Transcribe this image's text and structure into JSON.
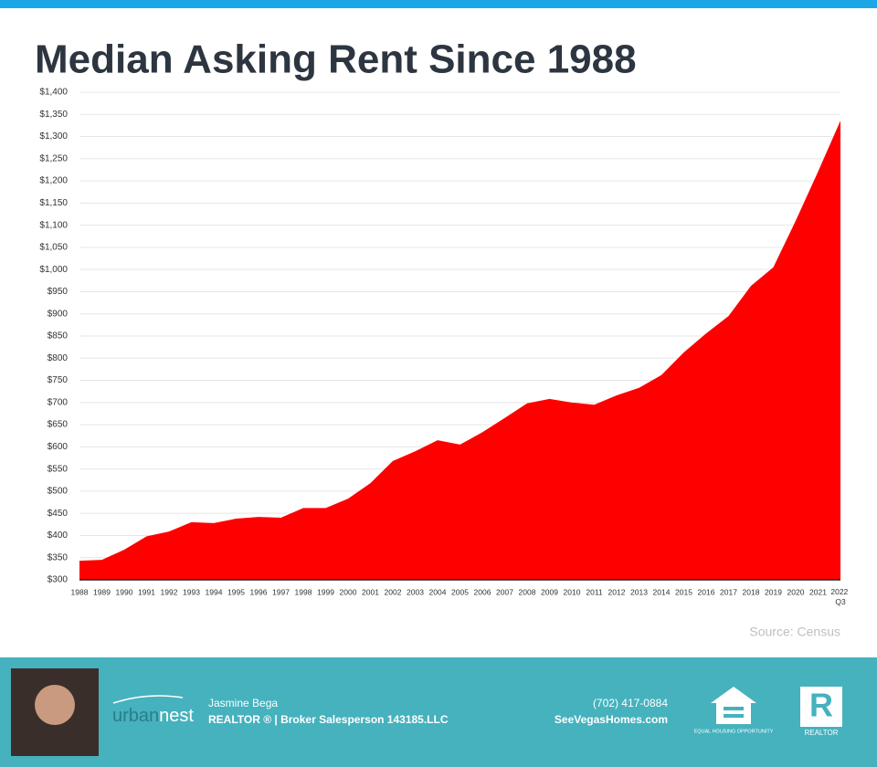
{
  "chart_data": {
    "type": "area",
    "title": "Median Asking Rent Since 1988",
    "categories": [
      "1988",
      "1989",
      "1990",
      "1991",
      "1992",
      "1993",
      "1994",
      "1995",
      "1996",
      "1997",
      "1998",
      "1999",
      "2000",
      "2001",
      "2002",
      "2003",
      "2004",
      "2005",
      "2006",
      "2007",
      "2008",
      "2009",
      "2010",
      "2011",
      "2012",
      "2013",
      "2014",
      "2015",
      "2016",
      "2017",
      "2018",
      "2019",
      "2020",
      "2021",
      "2022 Q3"
    ],
    "values": [
      343,
      345,
      368,
      398,
      409,
      430,
      428,
      438,
      442,
      440,
      462,
      462,
      483,
      518,
      568,
      590,
      615,
      605,
      633,
      665,
      698,
      708,
      700,
      695,
      716,
      733,
      762,
      813,
      856,
      895,
      963,
      1005,
      1110,
      1221,
      1336
    ],
    "color": "#ff0000",
    "ylim": [
      300,
      1400
    ],
    "yticks": [
      {
        "value": 300,
        "label": "$300"
      },
      {
        "value": 350,
        "label": "$350"
      },
      {
        "value": 400,
        "label": "$400"
      },
      {
        "value": 450,
        "label": "$450"
      },
      {
        "value": 500,
        "label": "$500"
      },
      {
        "value": 550,
        "label": "$550"
      },
      {
        "value": 600,
        "label": "$600"
      },
      {
        "value": 650,
        "label": "$650"
      },
      {
        "value": 700,
        "label": "$700"
      },
      {
        "value": 750,
        "label": "$750"
      },
      {
        "value": 800,
        "label": "$800"
      },
      {
        "value": 850,
        "label": "$850"
      },
      {
        "value": 900,
        "label": "$900"
      },
      {
        "value": 950,
        "label": "$950"
      },
      {
        "value": 1000,
        "label": "$1,000"
      },
      {
        "value": 1050,
        "label": "$1,050"
      },
      {
        "value": 1100,
        "label": "$1,100"
      },
      {
        "value": 1150,
        "label": "$1,150"
      },
      {
        "value": 1200,
        "label": "$1,200"
      },
      {
        "value": 1250,
        "label": "$1,250"
      },
      {
        "value": 1300,
        "label": "$1,300"
      },
      {
        "value": 1350,
        "label": "$1,350"
      },
      {
        "value": 1400,
        "label": "$1,400"
      }
    ],
    "grid": true,
    "source": "Source: Census"
  },
  "footer": {
    "logo_a": "urban",
    "logo_b": "nest",
    "name": "Jasmine Bega",
    "role": "REALTOR ® | Broker Salesperson 143185.LLC",
    "phone": "(702) 417-0884",
    "website": "SeeVegasHomes.com",
    "equal_housing": "EQUAL HOUSING OPPORTUNITY",
    "realtor": "REALTOR"
  }
}
